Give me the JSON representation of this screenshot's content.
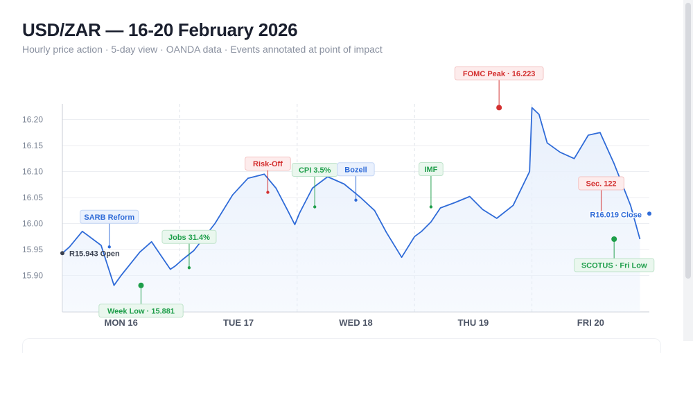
{
  "header": {
    "title": "USD/ZAR — 16-20 February 2026",
    "subtitle": "Hourly price action · 5-day view · OANDA data · Events annotated at point of impact"
  },
  "colors": {
    "line": "#2f6bd8",
    "area": "#e8f0fc",
    "grid": "#eceef2",
    "green": "#1e9e4a",
    "red": "#d32f2f",
    "blue": "#2f6bd8",
    "dark": "#3a4150"
  },
  "chart_data": {
    "type": "line",
    "title": "USD/ZAR — 16-20 February 2026",
    "subtitle": "Hourly price action · 5-day view · OANDA data · Events annotated at point of impact",
    "xlabel": "",
    "ylabel": "",
    "ylim": [
      15.83,
      16.23
    ],
    "xlim": [
      0,
      5
    ],
    "x_unit": "days from Mon 16 Feb 00:00",
    "yticks": [
      15.9,
      15.95,
      16.0,
      16.05,
      16.1,
      16.15,
      16.2
    ],
    "xticks": [
      {
        "x": 0.5,
        "label": "MON 16"
      },
      {
        "x": 1.5,
        "label": "TUE 17"
      },
      {
        "x": 2.5,
        "label": "WED 18"
      },
      {
        "x": 3.5,
        "label": "THU 19"
      },
      {
        "x": 4.5,
        "label": "FRI 20"
      }
    ],
    "day_dividers": [
      1,
      2,
      3,
      4
    ],
    "grid": true,
    "legend": "none",
    "series": [
      {
        "x": [
          0,
          0.06,
          0.17,
          0.33,
          0.44,
          0.5,
          0.66,
          0.76,
          0.85,
          0.92,
          0.96,
          1.02,
          1.12,
          1.3,
          1.45,
          1.58,
          1.72,
          1.82,
          1.92,
          1.98,
          2.02,
          2.13,
          2.26,
          2.4,
          2.54,
          2.66,
          2.76,
          2.89,
          3.0,
          3.06,
          3.14,
          3.22,
          3.34,
          3.47,
          3.58,
          3.7,
          3.84,
          3.98,
          4.0,
          4.06,
          4.13,
          4.24,
          4.36,
          4.48,
          4.58,
          4.7,
          4.84,
          4.92
        ],
        "y": [
          15.943,
          15.955,
          15.985,
          15.958,
          15.881,
          15.9,
          15.945,
          15.965,
          15.935,
          15.912,
          15.918,
          15.93,
          15.948,
          16.0,
          16.055,
          16.087,
          16.095,
          16.068,
          16.025,
          15.998,
          16.02,
          16.068,
          16.09,
          16.076,
          16.05,
          16.025,
          15.983,
          15.935,
          15.975,
          15.985,
          16.003,
          16.03,
          16.04,
          16.052,
          16.027,
          16.01,
          16.035,
          16.1,
          16.223,
          16.21,
          16.155,
          16.137,
          16.125,
          16.17,
          16.175,
          16.115,
          16.035,
          15.97
        ]
      }
    ],
    "annotations": [
      {
        "label": "R15.943 Open",
        "x": 0.0,
        "y": 15.943,
        "kind": "open"
      },
      {
        "label": "SARB Reform",
        "x": 0.4,
        "y": 15.955,
        "kind": "blue"
      },
      {
        "label": "Week Low · 15.881",
        "x": 0.67,
        "y": 15.881,
        "kind": "green"
      },
      {
        "label": "Jobs 31.4%",
        "x": 1.08,
        "y": 15.915,
        "kind": "green"
      },
      {
        "label": "Risk-Off",
        "x": 1.75,
        "y": 16.06,
        "kind": "red"
      },
      {
        "label": "CPI 3.5%",
        "x": 2.15,
        "y": 16.032,
        "kind": "green"
      },
      {
        "label": "Bozell",
        "x": 2.5,
        "y": 16.045,
        "kind": "blue"
      },
      {
        "label": "IMF",
        "x": 3.14,
        "y": 16.032,
        "kind": "green"
      },
      {
        "label": "FOMC Peak · 16.223",
        "x": 3.72,
        "y": 16.223,
        "kind": "red"
      },
      {
        "label": "Sec. 122",
        "x": 4.59,
        "y": 16.018,
        "kind": "red"
      },
      {
        "label": "SCOTUS · Fri Low",
        "x": 4.7,
        "y": 15.97,
        "kind": "green"
      },
      {
        "label": "R16.019 Close",
        "x": 4.95,
        "y": 16.019,
        "kind": "close"
      }
    ]
  }
}
